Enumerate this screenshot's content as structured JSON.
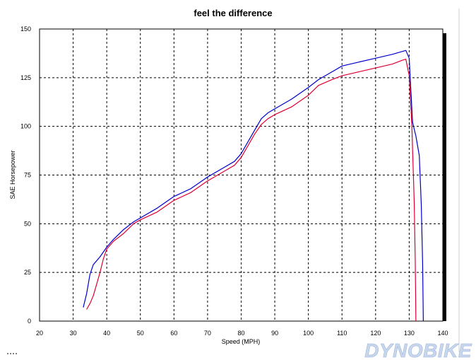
{
  "chart_data": {
    "type": "line",
    "title": "feel the difference",
    "xlabel": "Speed (MPH)",
    "ylabel": "SAE Horsepower",
    "xlim": [
      20,
      140
    ],
    "ylim": [
      0,
      150
    ],
    "x_ticks": [
      20,
      30,
      40,
      50,
      60,
      70,
      80,
      90,
      100,
      110,
      120,
      130,
      140
    ],
    "y_ticks": [
      0,
      25,
      50,
      75,
      100,
      125,
      150
    ],
    "grid": true,
    "legend": "none",
    "series": [
      {
        "color": "#0000cc",
        "points": [
          [
            33,
            7
          ],
          [
            34,
            14
          ],
          [
            35,
            24
          ],
          [
            36,
            29
          ],
          [
            38,
            33
          ],
          [
            40,
            38
          ],
          [
            42,
            42
          ],
          [
            45,
            47
          ],
          [
            48,
            51
          ],
          [
            50,
            53
          ],
          [
            55,
            58
          ],
          [
            60,
            64
          ],
          [
            65,
            68
          ],
          [
            70,
            74
          ],
          [
            75,
            79
          ],
          [
            78,
            82
          ],
          [
            80,
            86
          ],
          [
            82,
            92
          ],
          [
            84,
            98
          ],
          [
            86,
            104
          ],
          [
            88,
            107
          ],
          [
            90,
            109
          ],
          [
            95,
            114
          ],
          [
            100,
            120
          ],
          [
            103,
            124
          ],
          [
            107,
            128
          ],
          [
            110,
            131
          ],
          [
            115,
            133
          ],
          [
            120,
            135
          ],
          [
            125,
            137
          ],
          [
            128,
            138.5
          ],
          [
            129,
            139
          ],
          [
            130,
            135
          ],
          [
            131,
            102
          ],
          [
            132,
            95
          ],
          [
            133,
            85
          ],
          [
            133.6,
            60
          ],
          [
            134,
            30
          ],
          [
            134.2,
            0
          ]
        ]
      },
      {
        "color": "#dd0033",
        "points": [
          [
            34,
            6
          ],
          [
            35,
            9
          ],
          [
            36,
            13
          ],
          [
            37,
            19
          ],
          [
            38,
            25
          ],
          [
            39,
            32
          ],
          [
            40,
            37
          ],
          [
            42,
            41
          ],
          [
            45,
            45
          ],
          [
            48,
            50
          ],
          [
            50,
            52
          ],
          [
            55,
            56
          ],
          [
            60,
            62
          ],
          [
            65,
            66
          ],
          [
            70,
            72
          ],
          [
            75,
            77
          ],
          [
            78,
            80
          ],
          [
            80,
            84
          ],
          [
            82,
            90
          ],
          [
            84,
            96
          ],
          [
            86,
            101
          ],
          [
            88,
            104
          ],
          [
            90,
            106
          ],
          [
            95,
            110
          ],
          [
            100,
            116
          ],
          [
            103,
            121
          ],
          [
            107,
            124
          ],
          [
            110,
            126
          ],
          [
            115,
            128
          ],
          [
            120,
            130
          ],
          [
            125,
            132
          ],
          [
            128,
            134
          ],
          [
            129,
            134.5
          ],
          [
            130,
            126
          ],
          [
            130.8,
            100
          ],
          [
            131.5,
            60
          ],
          [
            131.8,
            30
          ],
          [
            132,
            0
          ]
        ]
      }
    ]
  },
  "watermark": {
    "text": "DYNOBIKE"
  }
}
